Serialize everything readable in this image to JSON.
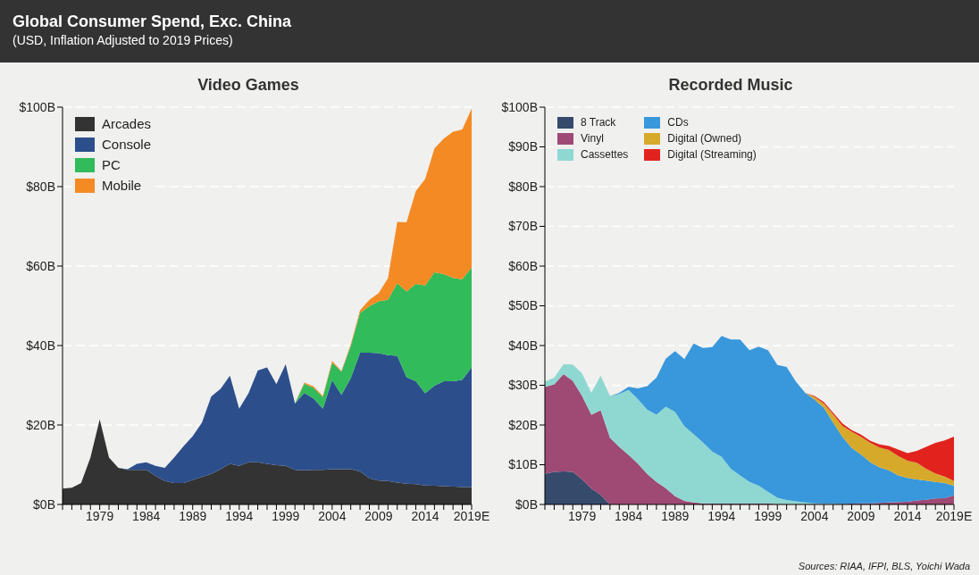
{
  "chart_data": [
    {
      "type": "area",
      "title": "Video Games",
      "stacked": true,
      "grid": "y",
      "legend": "top left",
      "annotations": [
        "Global Consumer Spend, Exc. China",
        "(USD, Inflation Adjusted to 2019 Prices)"
      ],
      "categories": [
        null,
        null,
        null,
        null,
        "1979",
        null,
        null,
        null,
        null,
        "1984",
        null,
        null,
        null,
        null,
        "1989",
        null,
        null,
        null,
        null,
        "1994",
        null,
        null,
        null,
        null,
        "1999",
        null,
        null,
        null,
        null,
        "2004",
        null,
        null,
        null,
        null,
        "2009",
        null,
        null,
        null,
        null,
        "2014",
        null,
        null,
        null,
        null,
        "2019E"
      ],
      "ylim": [
        0,
        100
      ],
      "yticks": [
        {
          "value": 0,
          "label": "$0B"
        },
        {
          "value": 20,
          "label": "$20B"
        },
        {
          "value": 40,
          "label": "$40B"
        },
        {
          "value": 60,
          "label": "$60B"
        },
        {
          "value": 80,
          "label": "$80B"
        },
        {
          "value": 100,
          "label": "$100B"
        }
      ],
      "series": [
        {
          "name": "Arcades",
          "color": "#333333",
          "values": [
            4,
            4.2,
            5.4,
            11.8,
            21.4,
            11.8,
            9.2,
            8.7,
            8.7,
            8.7,
            7.2,
            5.9,
            5.4,
            5.4,
            6.2,
            6.9,
            7.7,
            8.9,
            10.2,
            9.7,
            10.6,
            10.6,
            10.2,
            9.9,
            9.7,
            8.7,
            8.6,
            8.7,
            8.7,
            8.9,
            8.9,
            8.9,
            8.3,
            6.6,
            6,
            5.9,
            5.5,
            5.2,
            5.1,
            4.8,
            4.7,
            4.6,
            4.5,
            4.4,
            4.4
          ]
        },
        {
          "name": "Console",
          "color": "#2c4f8c",
          "values": [
            0,
            0,
            0,
            0,
            0,
            0,
            0,
            0.2,
            1.5,
            1.9,
            2.5,
            3.3,
            6.4,
            9.2,
            11,
            13.7,
            19.5,
            20.2,
            22.2,
            14.4,
            17.4,
            23.1,
            24.3,
            20.4,
            25.6,
            16.7,
            19.5,
            18,
            15.4,
            22.4,
            18.7,
            22.9,
            29.9,
            31.6,
            32.1,
            31.7,
            31.9,
            26.8,
            25.9,
            23.2,
            25.2,
            26.4,
            26.5,
            27,
            30.1
          ]
        },
        {
          "name": "PC",
          "color": "#31bb5a",
          "values": [
            0,
            0,
            0,
            0,
            0,
            0,
            0,
            0,
            0,
            0,
            0,
            0,
            0,
            0,
            0,
            0,
            0,
            0,
            0,
            0,
            0,
            0,
            0,
            0,
            0,
            0,
            2.3,
            2.6,
            2.9,
            4.4,
            5.8,
            8.1,
            10,
            11.7,
            13,
            13.9,
            18.3,
            21.6,
            24.5,
            27.1,
            28.5,
            27,
            26,
            25.3,
            25.1
          ]
        },
        {
          "name": "Mobile",
          "color": "#f48a23",
          "values": [
            0,
            0,
            0,
            0,
            0,
            0,
            0,
            0,
            0,
            0,
            0,
            0,
            0,
            0,
            0,
            0,
            0,
            0,
            0,
            0,
            0,
            0,
            0,
            0,
            0,
            0,
            0.3,
            0.4,
            0.3,
            0.4,
            0.2,
            0.4,
            0.7,
            1.6,
            2.1,
            5.4,
            15.4,
            17.4,
            23.4,
            26.8,
            31.2,
            34.1,
            36.8,
            37.7,
            40
          ]
        }
      ]
    },
    {
      "type": "area",
      "title": "Recorded Music",
      "stacked": true,
      "grid": "y",
      "legend": "top left",
      "annotations": [
        "Sources: RIAA, IFPI, BLS, Yoichi Wada"
      ],
      "categories": [
        null,
        null,
        null,
        null,
        "1979",
        null,
        null,
        null,
        null,
        "1984",
        null,
        null,
        null,
        null,
        "1989",
        null,
        null,
        null,
        null,
        "1994",
        null,
        null,
        null,
        null,
        "1999",
        null,
        null,
        null,
        null,
        "2004",
        null,
        null,
        null,
        null,
        "2009",
        null,
        null,
        null,
        null,
        "2014",
        null,
        null,
        null,
        null,
        "2019E"
      ],
      "ylim": [
        0,
        100
      ],
      "yticks": [
        {
          "value": 0,
          "label": "$0B"
        },
        {
          "value": 10,
          "label": "$10B"
        },
        {
          "value": 20,
          "label": "$20B"
        },
        {
          "value": 30,
          "label": "$30B"
        },
        {
          "value": 40,
          "label": "$40B"
        },
        {
          "value": 50,
          "label": "$50B"
        },
        {
          "value": 60,
          "label": "$60B"
        },
        {
          "value": 70,
          "label": "$70B"
        },
        {
          "value": 80,
          "label": "$80B"
        },
        {
          "value": 90,
          "label": "$90B"
        },
        {
          "value": 100,
          "label": "$100B"
        }
      ],
      "series": [
        {
          "name": "8 Track",
          "color": "#364a6b",
          "values": [
            7.7,
            8.2,
            8.3,
            8.2,
            6.3,
            4,
            2.4,
            0,
            0,
            0,
            0,
            0,
            0,
            0,
            0,
            0,
            0,
            0,
            0,
            0,
            0,
            0,
            0,
            0,
            0,
            0,
            0,
            0,
            0,
            0,
            0,
            0,
            0,
            0,
            0,
            0,
            0,
            0,
            0,
            0,
            0,
            0,
            0,
            0,
            0
          ]
        },
        {
          "name": "Vinyl",
          "color": "#9e4a75",
          "values": [
            21.9,
            22,
            24.5,
            22.9,
            21,
            18.6,
            21.3,
            16.8,
            14.5,
            12.5,
            10.3,
            7.7,
            5.7,
            4.1,
            2.1,
            0.9,
            0.5,
            0.3,
            0.2,
            0.2,
            0.2,
            0.2,
            0.2,
            0.2,
            0.2,
            0.1,
            0.1,
            0.1,
            0.1,
            0.1,
            0.1,
            0.1,
            0.1,
            0.2,
            0.3,
            0.3,
            0.4,
            0.5,
            0.6,
            0.7,
            1,
            1.2,
            1.5,
            1.6,
            2.3
          ]
        },
        {
          "name": "Cassettes",
          "color": "#8fd8d2",
          "values": [
            1.3,
            1.7,
            2.5,
            4.1,
            5.7,
            5.5,
            8.7,
            10.5,
            13.3,
            16.3,
            16.2,
            16.2,
            16.9,
            20.5,
            21.2,
            18.8,
            17.2,
            15.3,
            13.1,
            11.8,
            8.8,
            7.1,
            5.5,
            4.5,
            3,
            1.6,
            1,
            0.7,
            0.4,
            0.2,
            0.1,
            0.1,
            0,
            0,
            0,
            0,
            0,
            0,
            0,
            0,
            0,
            0,
            0,
            0,
            0
          ]
        },
        {
          "name": "CDs",
          "color": "#3898db",
          "values": [
            0,
            0,
            0,
            0,
            0,
            0,
            0,
            0,
            0.3,
            0.8,
            2.7,
            5.9,
            9.3,
            12.1,
            15.3,
            16.9,
            22.8,
            23.8,
            26.3,
            30.4,
            32.5,
            34.2,
            33.1,
            35,
            35.6,
            33.4,
            33.5,
            30.1,
            27.6,
            26.1,
            24.1,
            20.4,
            16.9,
            14,
            12.3,
            10.3,
            8.9,
            8.1,
            6.7,
            6,
            5.3,
            4.8,
            4.2,
            3.8,
            2.4
          ]
        },
        {
          "name": "Digital (Owned)",
          "color": "#d6a92b",
          "values": [
            0,
            0,
            0,
            0,
            0,
            0,
            0,
            0,
            0,
            0,
            0,
            0,
            0,
            0,
            0,
            0,
            0,
            0,
            0,
            0,
            0,
            0,
            0,
            0,
            0,
            0,
            0,
            0,
            0,
            0.7,
            1.1,
            2.1,
            2.8,
            4.1,
            4.4,
            4.9,
            5,
            5.1,
            4.9,
            4.3,
            4.2,
            3,
            2.1,
            1.6,
            1.2
          ]
        },
        {
          "name": "Digital (Streaming)",
          "color": "#e2231d",
          "values": [
            0,
            0,
            0,
            0,
            0,
            0,
            0,
            0,
            0,
            0,
            0,
            0,
            0,
            0,
            0,
            0,
            0,
            0,
            0,
            0,
            0,
            0,
            0,
            0,
            0,
            0,
            0,
            0,
            0,
            0.2,
            0.4,
            0.4,
            0.6,
            0.4,
            0.6,
            0.5,
            0.8,
            1,
            1.6,
            1.9,
            3,
            5.5,
            7.7,
            9.1,
            11.2
          ]
        }
      ]
    }
  ]
}
